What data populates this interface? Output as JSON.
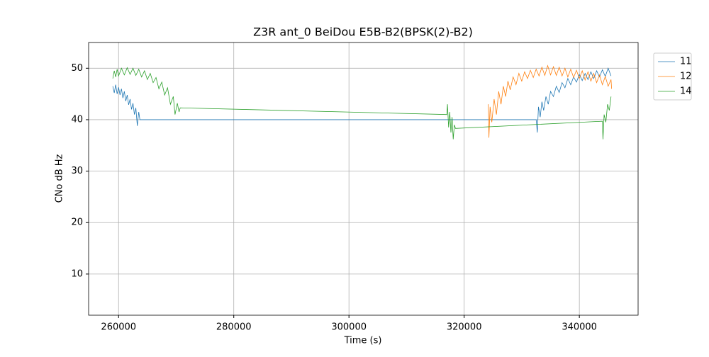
{
  "chart_data": {
    "type": "line",
    "title": "Z3R ant_0 BeiDou E5B-B2(BPSK(2)-B2)",
    "xlabel": "Time (s)",
    "ylabel": "CNo dB Hz",
    "xlim": [
      254800,
      350200
    ],
    "ylim": [
      2,
      55
    ],
    "xticks": [
      260000,
      280000,
      300000,
      320000,
      340000
    ],
    "yticks": [
      10,
      20,
      30,
      40,
      50
    ],
    "grid": true,
    "legend": "outside-upper-right",
    "series": [
      {
        "name": "11",
        "color": "#1f77b4",
        "x": [
          259000,
          259250,
          259500,
          259750,
          260000,
          260250,
          260500,
          260750,
          261000,
          261250,
          261500,
          261750,
          262000,
          262250,
          262500,
          262750,
          263000,
          263250,
          263500,
          263700,
          332500,
          332700,
          332900,
          333200,
          333500,
          333800,
          334200,
          334600,
          335000,
          335500,
          336000,
          336500,
          337000,
          337500,
          338000,
          338500,
          339000,
          339500,
          340000,
          340500,
          341000,
          341500,
          342000,
          342500,
          343000,
          343500,
          344000,
          344500,
          345000,
          345500
        ],
        "values": [
          46.5,
          45.2,
          46.8,
          45.0,
          46.3,
          44.8,
          46.0,
          44.2,
          45.5,
          43.6,
          44.8,
          42.9,
          44.0,
          42.0,
          43.2,
          41.0,
          42.3,
          38.8,
          41.5,
          40.0,
          40.0,
          37.5,
          42.5,
          40.5,
          43.5,
          41.8,
          44.5,
          43.0,
          45.5,
          44.5,
          46.5,
          45.3,
          47.2,
          46.2,
          48.0,
          46.8,
          48.3,
          47.3,
          48.8,
          47.6,
          49.0,
          47.8,
          49.3,
          48.0,
          49.5,
          48.3,
          49.7,
          48.4,
          50.0,
          48.5
        ]
      },
      {
        "name": "12",
        "color": "#ff7f0e",
        "x": [
          324200,
          324300,
          324500,
          324800,
          325200,
          325600,
          326000,
          326400,
          326800,
          327200,
          327600,
          328000,
          328500,
          329000,
          329500,
          330000,
          330500,
          331000,
          331500,
          332000,
          332500,
          333000,
          333500,
          334000,
          334500,
          335000,
          335500,
          336000,
          336500,
          337000,
          337500,
          338000,
          338500,
          339000,
          339500,
          340000,
          340500,
          341000,
          341500,
          342000,
          342500,
          343000,
          343500,
          344000,
          344500,
          345000,
          345500,
          345600
        ],
        "values": [
          43,
          36.5,
          42.5,
          39.5,
          44,
          41,
          45.5,
          43,
          46.5,
          44.5,
          47.5,
          45.8,
          48.3,
          46.8,
          49.0,
          47.5,
          49.3,
          48.0,
          49.6,
          48.2,
          49.8,
          48.5,
          50.2,
          48.6,
          50.5,
          48.7,
          50.3,
          48.6,
          50.2,
          48.5,
          50.0,
          48.3,
          49.8,
          48.2,
          49.6,
          48.0,
          49.5,
          47.7,
          49.3,
          47.5,
          49.0,
          47.2,
          48.7,
          46.8,
          48.4,
          46.5,
          47.8,
          46.0
        ]
      },
      {
        "name": "14",
        "color": "#2ca02c",
        "x": [
          259000,
          259250,
          259500,
          259750,
          260000,
          260500,
          261000,
          261500,
          262000,
          262500,
          263000,
          263500,
          264000,
          264500,
          265000,
          265500,
          266000,
          266500,
          267000,
          267500,
          268000,
          268500,
          269000,
          269500,
          269800,
          270200,
          270500,
          270700,
          317000,
          317100,
          317300,
          317500,
          317700,
          317900,
          318100,
          318300,
          318500,
          344000,
          344100,
          344300,
          344600,
          344900,
          345200,
          345500
        ],
        "values": [
          48,
          49.5,
          48.3,
          49.8,
          48.5,
          50.0,
          48.7,
          50.1,
          48.8,
          50.0,
          48.6,
          49.8,
          48.3,
          49.5,
          47.8,
          49.0,
          47.2,
          48.2,
          46.0,
          47.3,
          44.8,
          46.2,
          43.0,
          44.5,
          41.0,
          43.2,
          41.5,
          42.3,
          41.0,
          43.0,
          38.5,
          41.5,
          37.5,
          40.5,
          36.2,
          39.0,
          38.3,
          39.7,
          36.2,
          41.0,
          39.5,
          43.0,
          41.8,
          44.5
        ]
      }
    ]
  }
}
